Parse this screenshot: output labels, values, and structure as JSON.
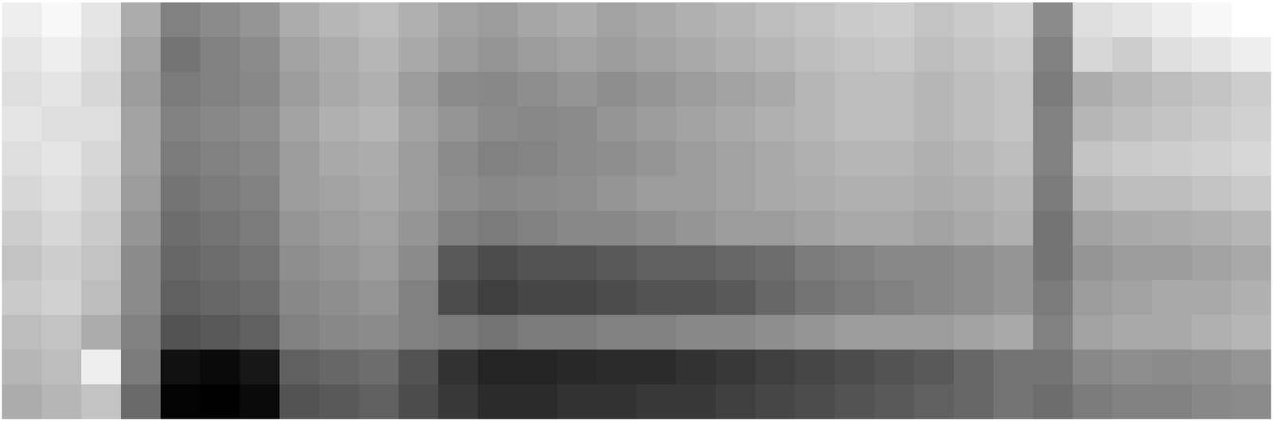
{
  "chart_data": {
    "type": "heatmap",
    "tick_labels": false,
    "color": "#000000",
    "values": [
      [
        25,
        22,
        28,
        45,
        58,
        55,
        52,
        45,
        42,
        40,
        44,
        48,
        50,
        47,
        45,
        48,
        46,
        44,
        42,
        40,
        38,
        36,
        35,
        38,
        36,
        34,
        55,
        30,
        28,
        25,
        22,
        20
      ],
      [
        28,
        25,
        30,
        48,
        62,
        58,
        55,
        48,
        45,
        42,
        46,
        50,
        52,
        50,
        48,
        50,
        48,
        46,
        44,
        42,
        40,
        38,
        37,
        40,
        38,
        36,
        58,
        32,
        35,
        30,
        28,
        25
      ],
      [
        30,
        28,
        32,
        50,
        60,
        58,
        56,
        50,
        46,
        44,
        50,
        55,
        56,
        54,
        52,
        54,
        52,
        50,
        48,
        46,
        42,
        40,
        40,
        42,
        40,
        38,
        60,
        45,
        42,
        40,
        38,
        35
      ],
      [
        28,
        30,
        30,
        48,
        58,
        56,
        54,
        48,
        44,
        42,
        48,
        52,
        55,
        56,
        55,
        52,
        50,
        48,
        46,
        44,
        42,
        40,
        40,
        42,
        40,
        38,
        58,
        42,
        40,
        38,
        36,
        34
      ],
      [
        30,
        28,
        32,
        48,
        60,
        58,
        56,
        50,
        46,
        45,
        50,
        55,
        58,
        57,
        55,
        54,
        52,
        50,
        48,
        46,
        44,
        42,
        42,
        44,
        42,
        40,
        58,
        38,
        36,
        35,
        34,
        32
      ],
      [
        32,
        30,
        34,
        50,
        62,
        60,
        58,
        50,
        48,
        46,
        50,
        54,
        56,
        55,
        54,
        52,
        50,
        50,
        48,
        46,
        45,
        44,
        44,
        45,
        44,
        42,
        60,
        42,
        40,
        40,
        38,
        36
      ],
      [
        35,
        32,
        36,
        52,
        64,
        62,
        60,
        52,
        50,
        48,
        52,
        58,
        60,
        58,
        56,
        56,
        54,
        52,
        50,
        50,
        48,
        46,
        46,
        48,
        46,
        44,
        62,
        48,
        46,
        45,
        44,
        42
      ],
      [
        38,
        35,
        38,
        55,
        66,
        64,
        62,
        54,
        52,
        50,
        55,
        70,
        74,
        72,
        72,
        70,
        68,
        68,
        66,
        64,
        60,
        58,
        56,
        56,
        54,
        52,
        62,
        52,
        50,
        50,
        48,
        46
      ],
      [
        36,
        34,
        40,
        55,
        68,
        66,
        64,
        56,
        54,
        52,
        58,
        74,
        78,
        76,
        76,
        74,
        72,
        72,
        70,
        66,
        62,
        60,
        58,
        56,
        54,
        52,
        60,
        50,
        48,
        46,
        46,
        44
      ],
      [
        40,
        38,
        45,
        58,
        72,
        70,
        68,
        58,
        56,
        55,
        58,
        60,
        62,
        60,
        60,
        58,
        58,
        56,
        56,
        54,
        52,
        50,
        50,
        50,
        48,
        46,
        58,
        48,
        46,
        46,
        44,
        42
      ],
      [
        42,
        40,
        25,
        60,
        92,
        94,
        90,
        68,
        66,
        64,
        72,
        82,
        86,
        86,
        85,
        84,
        84,
        82,
        80,
        78,
        76,
        74,
        72,
        70,
        66,
        62,
        62,
        56,
        54,
        55,
        54,
        52
      ],
      [
        45,
        42,
        38,
        65,
        96,
        97,
        94,
        72,
        70,
        68,
        74,
        80,
        84,
        84,
        82,
        82,
        80,
        80,
        78,
        76,
        74,
        72,
        70,
        68,
        66,
        62,
        64,
        60,
        58,
        58,
        56,
        55
      ]
    ]
  }
}
